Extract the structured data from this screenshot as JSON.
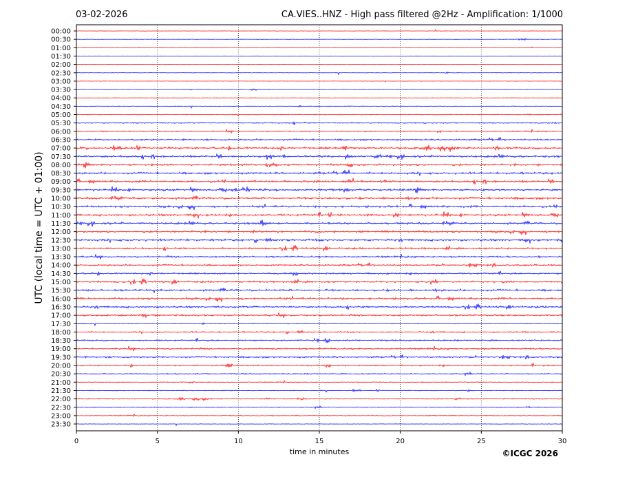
{
  "header": {
    "date": "03-02-2026",
    "title": "CA.VIES..HNZ - High pass filtered @2Hz - Amplification: 1/1000"
  },
  "footer": {
    "copyright": "©ICGC 2026"
  },
  "colors": {
    "trace_a": "#ff0000",
    "trace_b": "#0000ff",
    "grid": "#000000"
  },
  "chart_data": {
    "type": "line",
    "title": "CA.VIES..HNZ - High pass filtered @2Hz - Amplification: 1/1000",
    "xlabel": "time in minutes",
    "ylabel": "UTC (local time = UTC + 01:00)",
    "xlim": [
      0,
      30
    ],
    "x_ticks": [
      0,
      5,
      10,
      15,
      20,
      25,
      30
    ],
    "grid": "vertical dotted lines at 5-minute intervals",
    "rows": [
      {
        "label": "00:00",
        "color": "red",
        "activity": 0.05
      },
      {
        "label": "00:30",
        "color": "blue",
        "activity": 0.08
      },
      {
        "label": "01:00",
        "color": "red",
        "activity": 0.1
      },
      {
        "label": "01:30",
        "color": "blue",
        "activity": 0.06
      },
      {
        "label": "02:00",
        "color": "red",
        "activity": 0.05
      },
      {
        "label": "02:30",
        "color": "blue",
        "activity": 0.1
      },
      {
        "label": "03:00",
        "color": "red",
        "activity": 0.06
      },
      {
        "label": "03:30",
        "color": "blue",
        "activity": 0.1
      },
      {
        "label": "04:00",
        "color": "red",
        "activity": 0.1
      },
      {
        "label": "04:30",
        "color": "blue",
        "activity": 0.18
      },
      {
        "label": "05:00",
        "color": "red",
        "activity": 0.28
      },
      {
        "label": "05:30",
        "color": "blue",
        "activity": 0.4
      },
      {
        "label": "06:00",
        "color": "red",
        "activity": 0.45
      },
      {
        "label": "06:30",
        "color": "blue",
        "activity": 0.7
      },
      {
        "label": "07:00",
        "color": "red",
        "activity": 0.9
      },
      {
        "label": "07:30",
        "color": "blue",
        "activity": 0.9
      },
      {
        "label": "08:00",
        "color": "red",
        "activity": 0.9
      },
      {
        "label": "08:30",
        "color": "blue",
        "activity": 0.9
      },
      {
        "label": "09:00",
        "color": "red",
        "activity": 0.9
      },
      {
        "label": "09:30",
        "color": "blue",
        "activity": 0.9
      },
      {
        "label": "10:00",
        "color": "red",
        "activity": 0.95
      },
      {
        "label": "10:30",
        "color": "blue",
        "activity": 0.9
      },
      {
        "label": "11:00",
        "color": "red",
        "activity": 0.9
      },
      {
        "label": "11:30",
        "color": "blue",
        "activity": 0.9
      },
      {
        "label": "12:00",
        "color": "red",
        "activity": 0.9
      },
      {
        "label": "12:30",
        "color": "blue",
        "activity": 0.9
      },
      {
        "label": "13:00",
        "color": "red",
        "activity": 0.8
      },
      {
        "label": "13:30",
        "color": "blue",
        "activity": 0.7
      },
      {
        "label": "14:00",
        "color": "red",
        "activity": 0.7
      },
      {
        "label": "14:30",
        "color": "blue",
        "activity": 0.7
      },
      {
        "label": "15:00",
        "color": "red",
        "activity": 0.8
      },
      {
        "label": "15:30",
        "color": "blue",
        "activity": 0.9
      },
      {
        "label": "16:00",
        "color": "red",
        "activity": 0.9
      },
      {
        "label": "16:30",
        "color": "blue",
        "activity": 0.75
      },
      {
        "label": "17:00",
        "color": "red",
        "activity": 0.75
      },
      {
        "label": "17:30",
        "color": "blue",
        "activity": 0.25
      },
      {
        "label": "18:00",
        "color": "red",
        "activity": 0.5
      },
      {
        "label": "18:30",
        "color": "blue",
        "activity": 0.6
      },
      {
        "label": "19:00",
        "color": "red",
        "activity": 0.7
      },
      {
        "label": "19:30",
        "color": "blue",
        "activity": 0.65
      },
      {
        "label": "20:00",
        "color": "red",
        "activity": 0.55
      },
      {
        "label": "20:30",
        "color": "blue",
        "activity": 0.4
      },
      {
        "label": "21:00",
        "color": "red",
        "activity": 0.3
      },
      {
        "label": "21:30",
        "color": "blue",
        "activity": 0.25
      },
      {
        "label": "22:00",
        "color": "red",
        "activity": 0.3
      },
      {
        "label": "22:30",
        "color": "blue",
        "activity": 0.25
      },
      {
        "label": "23:00",
        "color": "red",
        "activity": 0.3
      },
      {
        "label": "23:30",
        "color": "blue",
        "activity": 0.1
      }
    ]
  }
}
